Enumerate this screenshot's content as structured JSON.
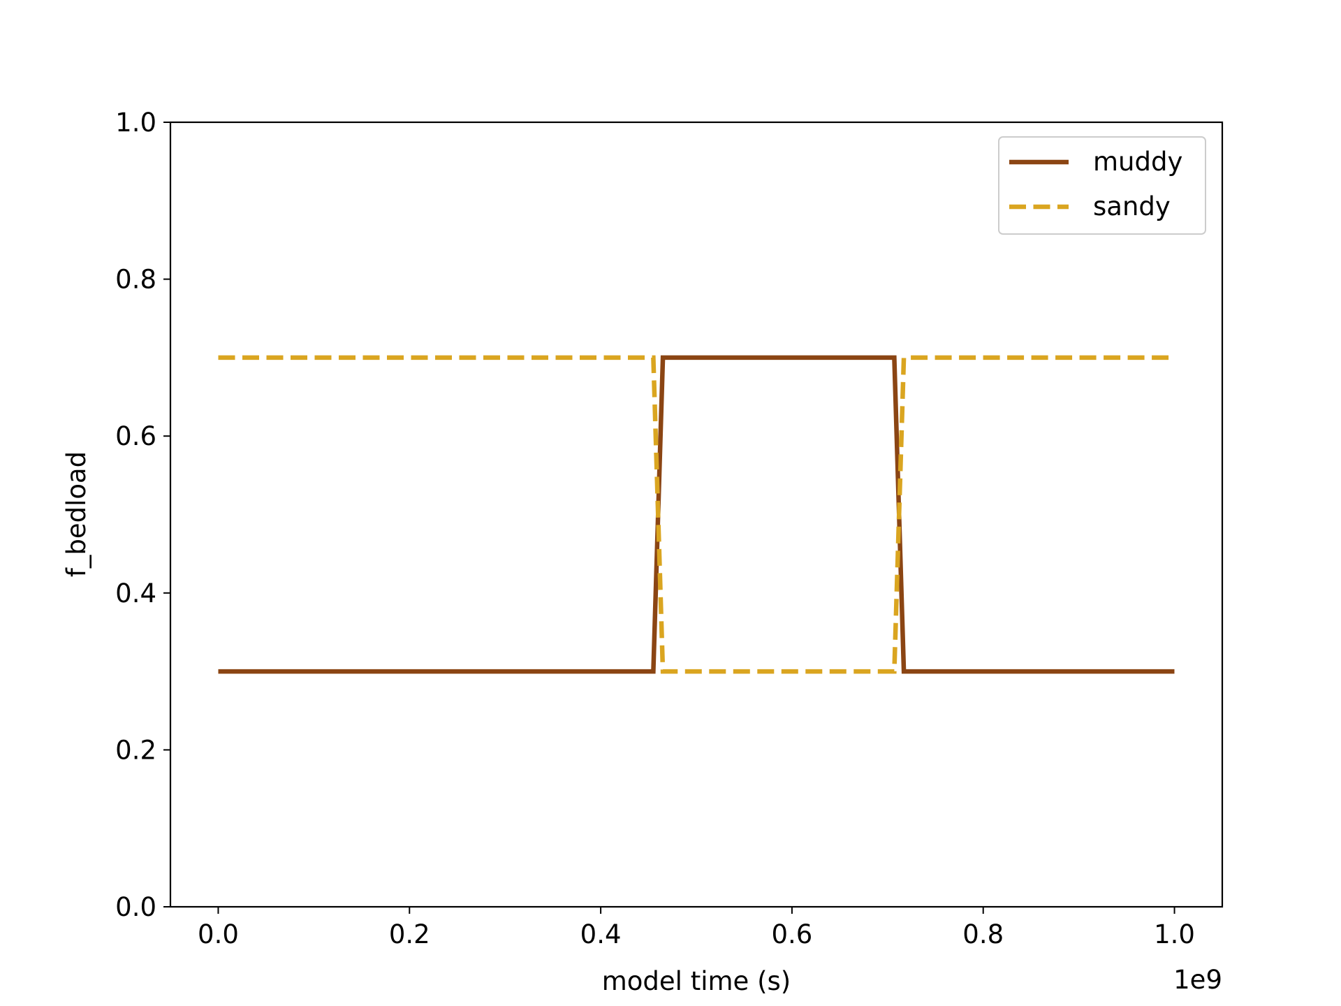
{
  "chart_data": {
    "type": "line",
    "title": "",
    "xlabel": "model time (s)",
    "ylabel": "f_bedload",
    "x_offset_label": "1e9",
    "xlim": [
      -0.05,
      1.05
    ],
    "ylim": [
      0.0,
      1.0
    ],
    "x_ticks": [
      0.0,
      0.2,
      0.4,
      0.6,
      0.8,
      1.0
    ],
    "x_tick_labels": [
      "0.0",
      "0.2",
      "0.4",
      "0.6",
      "0.8",
      "1.0"
    ],
    "y_ticks": [
      0.0,
      0.2,
      0.4,
      0.6,
      0.8,
      1.0
    ],
    "y_tick_labels": [
      "0.0",
      "0.2",
      "0.4",
      "0.6",
      "0.8",
      "1.0"
    ],
    "grid": false,
    "legend_position": "top-right",
    "series": [
      {
        "name": "muddy",
        "color": "#8B4513",
        "style": "solid",
        "x": [
          0.0,
          0.455,
          0.465,
          0.707,
          0.717,
          1.0
        ],
        "y": [
          0.3,
          0.3,
          0.7,
          0.7,
          0.3,
          0.3
        ]
      },
      {
        "name": "sandy",
        "color": "#DAA520",
        "style": "dashed",
        "x": [
          0.0,
          0.455,
          0.465,
          0.707,
          0.717,
          1.0
        ],
        "y": [
          0.7,
          0.7,
          0.3,
          0.3,
          0.7,
          0.7
        ]
      }
    ]
  }
}
